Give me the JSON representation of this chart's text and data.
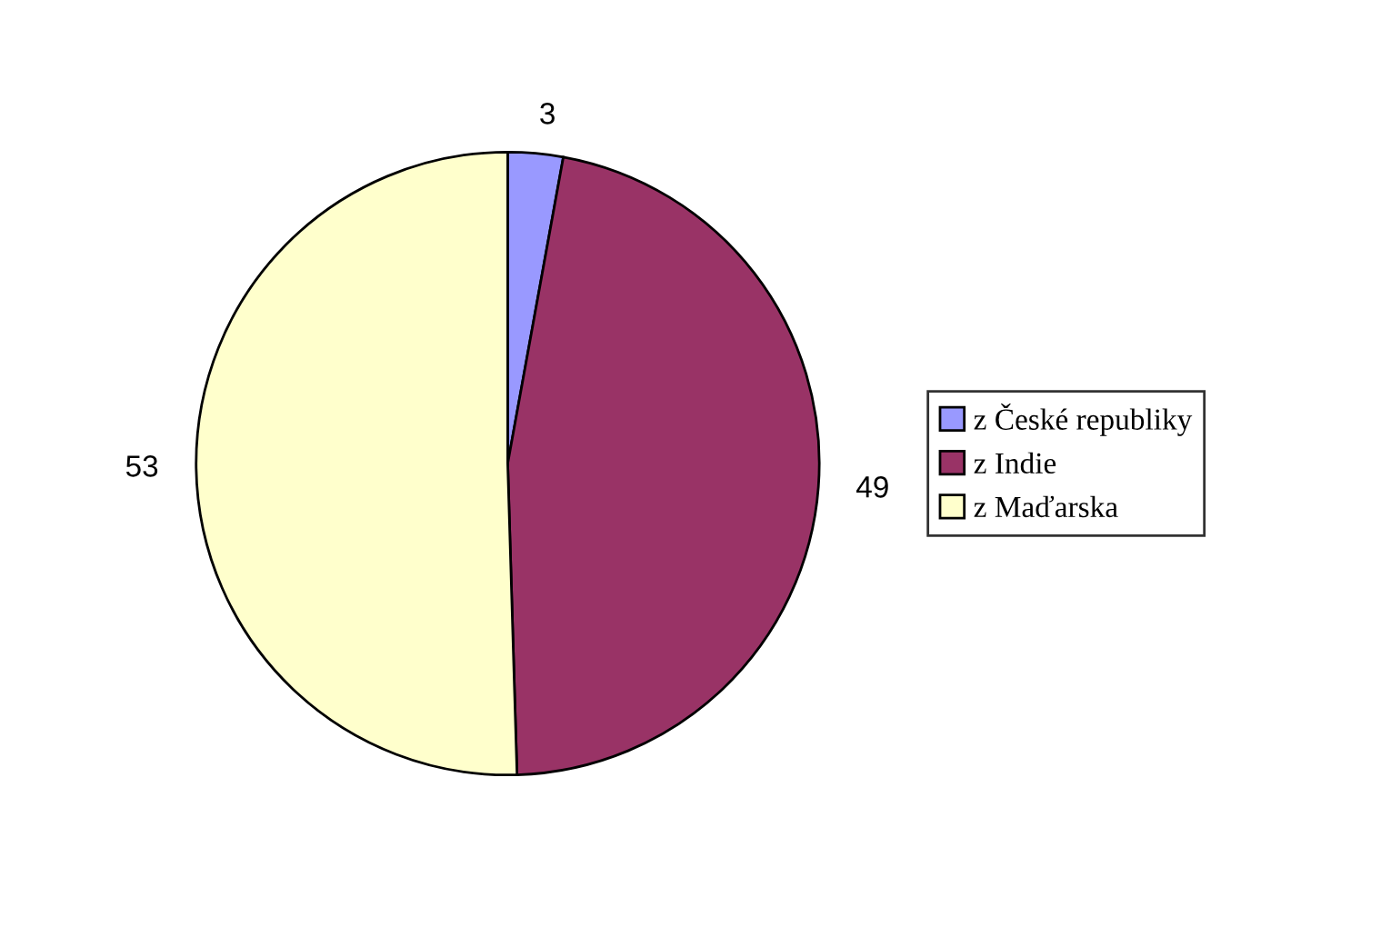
{
  "chart_data": {
    "type": "pie",
    "categories": [
      "z České republiky",
      "z Indie",
      "z Maďarska"
    ],
    "values": [
      3,
      49,
      53
    ],
    "colors": [
      "#9999ff",
      "#993366",
      "#ffffcc"
    ],
    "data_labels": true,
    "legend": "right"
  }
}
